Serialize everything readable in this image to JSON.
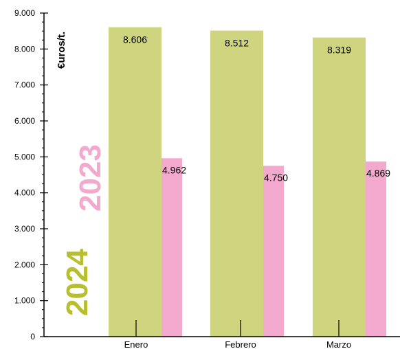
{
  "chart_data": {
    "type": "bar",
    "title": "",
    "unit_label": "€uros/t.",
    "categories": [
      "Enero",
      "Febrero",
      "Marzo"
    ],
    "series": [
      {
        "name": "2024",
        "color": "#cfd47e",
        "values": [
          8606,
          8512,
          8319
        ],
        "labels": [
          "8.606",
          "8.512",
          "8.319"
        ]
      },
      {
        "name": "2023",
        "color": "#f2a9cd",
        "values": [
          4962,
          4750,
          4869
        ],
        "labels": [
          "4.962",
          "4.750",
          "4.869"
        ]
      }
    ],
    "ylim": [
      0,
      9000
    ],
    "y_ticks": [
      {
        "value": 0,
        "label": "0"
      },
      {
        "value": 1000,
        "label": "1.000"
      },
      {
        "value": 2000,
        "label": "2.000"
      },
      {
        "value": 3000,
        "label": "3.000"
      },
      {
        "value": 4000,
        "label": "4.000"
      },
      {
        "value": 5000,
        "label": "5.000"
      },
      {
        "value": 6000,
        "label": "6.000"
      },
      {
        "value": 7000,
        "label": "7.000"
      },
      {
        "value": 8000,
        "label": "8.000"
      },
      {
        "value": 9000,
        "label": "9.000"
      }
    ],
    "legend": {
      "placement": "left",
      "colors": {
        "2024": "#b7bf2e",
        "2023": "#f2a9cd"
      }
    },
    "grid": false
  }
}
